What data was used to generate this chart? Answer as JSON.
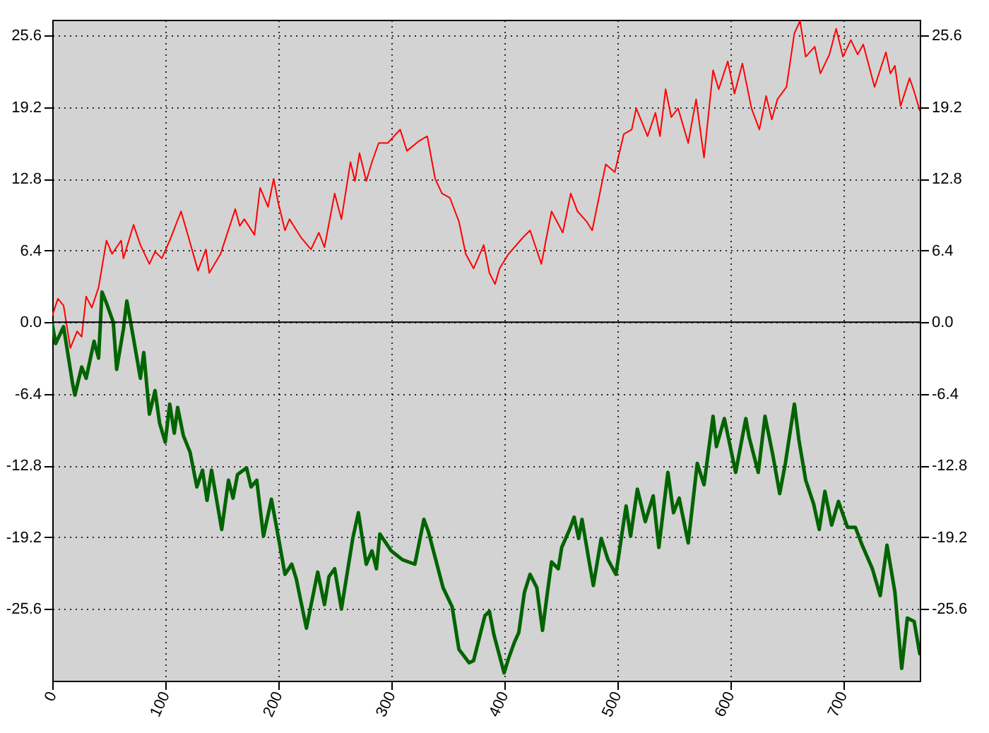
{
  "chart_data": {
    "type": "line",
    "xlim": [
      0,
      768
    ],
    "xticks": [
      0,
      100,
      200,
      300,
      400,
      500,
      600,
      700
    ],
    "ylim": [
      -32,
      27
    ],
    "yticks": [
      {
        "value": -25.6,
        "label": "-25.6"
      },
      {
        "value": -19.2,
        "label": "-19.2"
      },
      {
        "value": -12.8,
        "label": "-12.8"
      },
      {
        "value": -6.4,
        "label": "-6.4"
      },
      {
        "value": 0,
        "label": "0.0"
      },
      {
        "value": 6.4,
        "label": "6.4"
      },
      {
        "value": 12.8,
        "label": "12.8"
      },
      {
        "value": 19.2,
        "label": "19.2"
      },
      {
        "value": 25.6,
        "label": "25.6"
      }
    ],
    "y2lim": [
      -32,
      27
    ],
    "y2ticks": [
      {
        "value": -25.6,
        "label": "-25.6"
      },
      {
        "value": -19.2,
        "label": "-19.2"
      },
      {
        "value": -12.8,
        "label": "-12.8"
      },
      {
        "value": -6.4,
        "label": "-6.4"
      },
      {
        "value": 0,
        "label": "0.0"
      },
      {
        "value": 6.4,
        "label": "6.4"
      },
      {
        "value": 12.8,
        "label": "12.8"
      },
      {
        "value": 19.2,
        "label": "19.2"
      },
      {
        "value": 25.6,
        "label": "25.6"
      }
    ],
    "grid": true,
    "marker": "none",
    "line_style": "solid",
    "ref_lines": [
      {
        "axis": "y",
        "value": 0,
        "color": "#000000"
      }
    ],
    "series": [
      {
        "color": "#ff0000",
        "x": [
          0,
          5,
          10,
          16,
          22,
          26,
          30,
          35,
          41,
          48,
          53,
          61,
          63,
          72,
          78,
          86,
          91,
          97,
          104,
          114,
          120,
          129,
          136,
          139,
          149,
          162,
          166,
          170,
          179,
          184,
          191,
          196,
          200,
          206,
          210,
          220,
          229,
          236,
          241,
          250,
          256,
          264,
          268,
          272,
          278,
          283,
          289,
          297,
          308,
          314,
          325,
          332,
          339,
          345,
          352,
          360,
          366,
          373,
          382,
          387,
          392,
          396,
          404,
          417,
          423,
          433,
          442,
          452,
          459,
          465,
          473,
          478,
          490,
          498,
          506,
          513,
          517,
          527,
          534,
          538,
          543,
          548,
          554,
          563,
          570,
          577,
          585,
          590,
          598,
          604,
          611,
          619,
          626,
          632,
          637,
          642,
          650,
          657,
          662,
          667,
          675,
          680,
          688,
          694,
          700,
          707,
          713,
          718,
          728,
          738,
          742,
          746,
          751,
          759,
          763,
          768
        ],
        "values": [
          0.6,
          2.1,
          1.5,
          -2.3,
          -0.8,
          -1.3,
          2.3,
          1.3,
          3.1,
          7.3,
          6.1,
          7.3,
          5.7,
          8.7,
          6.9,
          5.2,
          6.3,
          5.7,
          7.3,
          9.9,
          7.8,
          4.6,
          6.5,
          4.4,
          6.1,
          10.1,
          8.6,
          9.2,
          7.8,
          12.0,
          10.3,
          12.8,
          10.7,
          8.2,
          9.2,
          7.6,
          6.5,
          8.0,
          6.7,
          11.5,
          9.2,
          14.3,
          12.6,
          15.1,
          12.6,
          14.3,
          16.0,
          16.0,
          17.2,
          15.3,
          16.2,
          16.6,
          12.8,
          11.5,
          11.1,
          9.0,
          6.1,
          4.8,
          6.9,
          4.4,
          3.4,
          4.8,
          6.1,
          7.6,
          8.2,
          5.2,
          9.9,
          8.0,
          11.5,
          9.9,
          9.0,
          8.2,
          14.1,
          13.4,
          16.8,
          17.2,
          19.1,
          16.6,
          18.7,
          16.6,
          20.8,
          18.3,
          19.1,
          16.0,
          19.9,
          14.7,
          22.5,
          20.8,
          23.3,
          20.4,
          23.1,
          19.1,
          17.2,
          20.2,
          18.1,
          19.9,
          21.0,
          25.8,
          26.9,
          23.7,
          24.6,
          22.2,
          23.9,
          26.2,
          23.7,
          25.2,
          23.9,
          24.8,
          21.0,
          24.1,
          22.2,
          22.9,
          19.3,
          21.8,
          20.6,
          18.9
        ]
      },
      {
        "color": "#006400",
        "x": [
          0,
          3,
          10,
          18,
          20,
          26,
          30,
          37,
          41,
          44,
          48,
          54,
          57,
          63,
          66,
          72,
          78,
          81,
          86,
          91,
          95,
          100,
          104,
          108,
          111,
          116,
          122,
          128,
          133,
          137,
          141,
          150,
          156,
          160,
          164,
          172,
          176,
          181,
          187,
          194,
          200,
          206,
          212,
          216,
          225,
          235,
          241,
          245,
          250,
          256,
          266,
          271,
          278,
          283,
          287,
          290,
          300,
          310,
          321,
          329,
          333,
          346,
          354,
          360,
          369,
          373,
          383,
          387,
          391,
          400,
          404,
          409,
          413,
          418,
          423,
          429,
          434,
          438,
          442,
          448,
          451,
          458,
          462,
          466,
          469,
          475,
          479,
          486,
          492,
          499,
          508,
          512,
          518,
          525,
          532,
          537,
          545,
          550,
          555,
          563,
          571,
          577,
          585,
          588,
          595,
          605,
          614,
          617,
          625,
          631,
          638,
          644,
          649,
          657,
          661,
          667,
          674,
          679,
          684,
          690,
          696,
          704,
          711,
          717,
          726,
          733,
          739,
          746,
          752,
          757,
          763,
          768
        ],
        "values": [
          -0.2,
          -1.9,
          -0.4,
          -5.5,
          -6.5,
          -4.0,
          -5.0,
          -1.7,
          -3.2,
          2.7,
          1.7,
          0,
          -4.2,
          -0.6,
          1.9,
          -1.5,
          -5.0,
          -2.7,
          -8.2,
          -6.1,
          -9.0,
          -10.7,
          -7.3,
          -9.9,
          -7.6,
          -10.1,
          -11.6,
          -14.7,
          -13.2,
          -15.9,
          -13.2,
          -18.5,
          -14.1,
          -15.7,
          -13.6,
          -13.0,
          -14.7,
          -14.1,
          -19.1,
          -15.8,
          -19.1,
          -22.5,
          -21.6,
          -22.9,
          -27.3,
          -22.3,
          -25.2,
          -22.7,
          -22.0,
          -25.6,
          -19.3,
          -17.0,
          -21.6,
          -20.4,
          -22.0,
          -18.9,
          -20.4,
          -21.2,
          -21.6,
          -17.6,
          -18.7,
          -23.7,
          -25.4,
          -29.2,
          -30.4,
          -30.2,
          -26.2,
          -25.8,
          -27.9,
          -31.3,
          -30.0,
          -28.6,
          -27.7,
          -24.1,
          -22.5,
          -23.7,
          -27.5,
          -24.4,
          -21.4,
          -22.0,
          -20.1,
          -18.5,
          -17.4,
          -19.3,
          -17.6,
          -21.2,
          -23.5,
          -19.3,
          -21.2,
          -22.5,
          -16.4,
          -19.1,
          -14.9,
          -17.8,
          -15.5,
          -20.1,
          -13.4,
          -17.0,
          -15.7,
          -19.7,
          -12.6,
          -14.5,
          -8.4,
          -11.1,
          -8.6,
          -13.4,
          -8.6,
          -10.3,
          -13.4,
          -8.4,
          -11.9,
          -15.3,
          -12.6,
          -7.3,
          -10.5,
          -14.1,
          -16.2,
          -18.5,
          -15.1,
          -18.1,
          -16.0,
          -18.3,
          -18.3,
          -19.9,
          -22.0,
          -24.4,
          -19.9,
          -24.1,
          -30.9,
          -26.4,
          -26.7,
          -29.6
        ]
      }
    ]
  }
}
